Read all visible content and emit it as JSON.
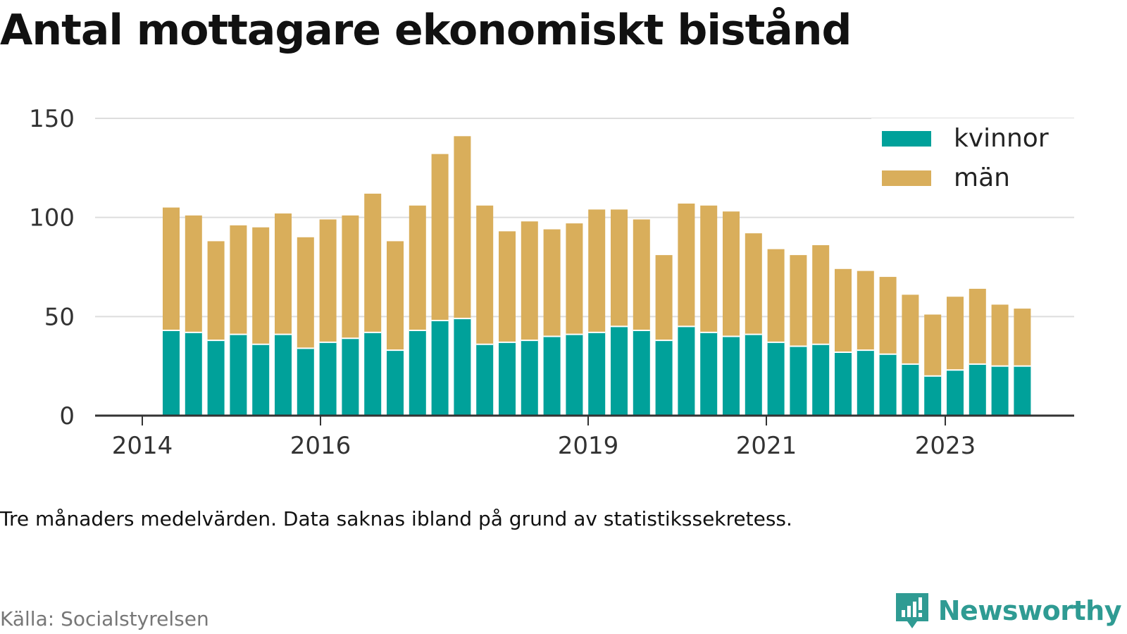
{
  "title": "Antal mottagare ekonomiskt bistånd",
  "note": "Tre månaders medelvärden. Data saknas ibland på grund av statistikssekretess.",
  "source": "Källa: Socialstyrelsen",
  "brand": "Newsworthy",
  "colors": {
    "kvinnor": "#00a19a",
    "man": "#d9ae5b",
    "grid": "#dddddd",
    "axis": "#333333",
    "brand": "#2f9b93"
  },
  "chart_data": {
    "type": "bar",
    "stacked": true,
    "x_axis_ticks": [
      "2014",
      "2016",
      "2019",
      "2021",
      "2023"
    ],
    "ylim": [
      0,
      150
    ],
    "y_ticks": [
      0,
      50,
      100,
      150
    ],
    "grid": true,
    "legend_position": "top-right",
    "series": [
      {
        "name": "kvinnor",
        "color": "#00a19a",
        "values": [
          43,
          42,
          38,
          41,
          36,
          41,
          34,
          37,
          39,
          42,
          33,
          43,
          48,
          49,
          36,
          37,
          38,
          40,
          41,
          42,
          45,
          43,
          38,
          45,
          42,
          40,
          41,
          37,
          35,
          36,
          32,
          33,
          31,
          26,
          20,
          23,
          26,
          25,
          25
        ]
      },
      {
        "name": "män",
        "color": "#d9ae5b",
        "values": [
          62,
          59,
          50,
          55,
          59,
          61,
          56,
          62,
          62,
          70,
          55,
          63,
          84,
          92,
          70,
          56,
          60,
          54,
          56,
          62,
          59,
          56,
          43,
          62,
          64,
          63,
          51,
          47,
          46,
          50,
          42,
          40,
          39,
          35,
          31,
          37,
          38,
          31,
          29
        ]
      }
    ]
  }
}
